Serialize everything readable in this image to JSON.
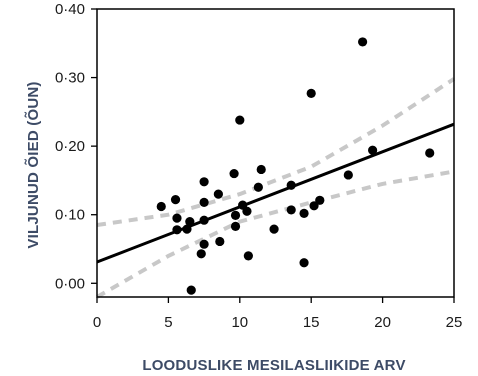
{
  "chart_data": {
    "type": "scatter",
    "title": "",
    "xlabel": "LOODUSLIKE MESILASLIIKIDE ARV",
    "ylabel": "VILJUNUD ÕIED  (ÕUN)",
    "xlim": [
      0,
      25
    ],
    "ylim": [
      -0.02,
      0.4
    ],
    "x_ticks": [
      0,
      5,
      10,
      15,
      20,
      25
    ],
    "x_tick_labels": [
      "0",
      "5",
      "10",
      "15",
      "20",
      "25"
    ],
    "y_ticks": [
      0.0,
      0.1,
      0.2,
      0.3,
      0.4
    ],
    "y_tick_labels": [
      "0·00",
      "0·10",
      "0·20",
      "0·30",
      "0·40"
    ],
    "grid": false,
    "legend": "none",
    "points": [
      {
        "x": 4.5,
        "y": 0.112
      },
      {
        "x": 5.5,
        "y": 0.122
      },
      {
        "x": 5.6,
        "y": 0.095
      },
      {
        "x": 5.6,
        "y": 0.078
      },
      {
        "x": 6.3,
        "y": 0.079
      },
      {
        "x": 6.5,
        "y": 0.09
      },
      {
        "x": 6.6,
        "y": -0.01
      },
      {
        "x": 7.3,
        "y": 0.043
      },
      {
        "x": 7.5,
        "y": 0.148
      },
      {
        "x": 7.5,
        "y": 0.118
      },
      {
        "x": 7.5,
        "y": 0.092
      },
      {
        "x": 7.5,
        "y": 0.057
      },
      {
        "x": 8.5,
        "y": 0.13
      },
      {
        "x": 8.6,
        "y": 0.061
      },
      {
        "x": 9.6,
        "y": 0.16
      },
      {
        "x": 9.7,
        "y": 0.099
      },
      {
        "x": 9.7,
        "y": 0.083
      },
      {
        "x": 10.0,
        "y": 0.238
      },
      {
        "x": 10.2,
        "y": 0.114
      },
      {
        "x": 10.5,
        "y": 0.105
      },
      {
        "x": 10.6,
        "y": 0.04
      },
      {
        "x": 11.3,
        "y": 0.14
      },
      {
        "x": 11.5,
        "y": 0.166
      },
      {
        "x": 12.4,
        "y": 0.079
      },
      {
        "x": 13.6,
        "y": 0.143
      },
      {
        "x": 13.6,
        "y": 0.107
      },
      {
        "x": 14.5,
        "y": 0.102
      },
      {
        "x": 14.5,
        "y": 0.03
      },
      {
        "x": 15.0,
        "y": 0.277
      },
      {
        "x": 15.2,
        "y": 0.113
      },
      {
        "x": 15.6,
        "y": 0.121
      },
      {
        "x": 17.6,
        "y": 0.158
      },
      {
        "x": 18.6,
        "y": 0.352
      },
      {
        "x": 19.3,
        "y": 0.194
      },
      {
        "x": 23.3,
        "y": 0.19
      }
    ],
    "regression_line": {
      "x": [
        0,
        25
      ],
      "y": [
        0.031,
        0.232
      ]
    },
    "confidence_band": {
      "upper": {
        "x": [
          0,
          5,
          10,
          15,
          20,
          25
        ],
        "y": [
          0.085,
          0.1,
          0.13,
          0.17,
          0.23,
          0.298
        ]
      },
      "lower": {
        "x": [
          0,
          5,
          10,
          15,
          20,
          25
        ],
        "y": [
          -0.02,
          0.04,
          0.09,
          0.118,
          0.145,
          0.163
        ]
      }
    },
    "colors": {
      "points": "#000000",
      "regression_line": "#000000",
      "confidence_band": "#c8c8c8",
      "axis_title": "#3d4b66",
      "frame": "#000000"
    }
  }
}
